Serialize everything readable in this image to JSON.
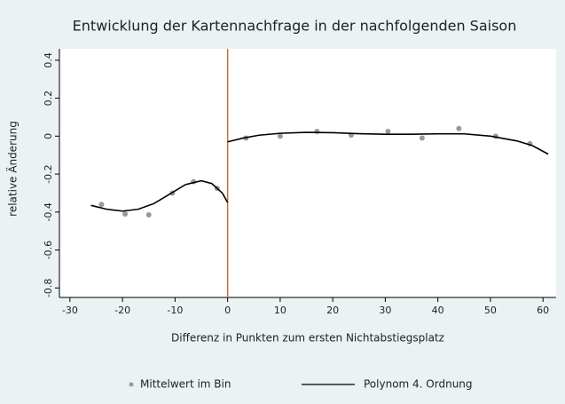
{
  "chart_data": {
    "type": "scatter",
    "title": "Entwicklung der Kartennachfrage in der nachfolgenden Saison",
    "x_label": "Differenz in Punkten zum ersten Nichtabstiegsplatz",
    "y_label": "relative Änderung",
    "xlim": [
      -32,
      62.5
    ],
    "ylim": [
      -0.85,
      0.46
    ],
    "xticks": [
      -30,
      -20,
      -10,
      0,
      10,
      20,
      30,
      40,
      50,
      60
    ],
    "yticks": [
      0.4,
      0.2,
      0,
      -0.2,
      -0.4,
      -0.6,
      -0.8
    ],
    "vline": 0,
    "vline_color": "#c8702a",
    "legend": "bottom",
    "series": [
      {
        "name": "Mittelwert im Bin",
        "type": "scatter",
        "color": "#9a9a9a",
        "x": [
          -24,
          -19.5,
          -15,
          -10.5,
          -6.5,
          -2,
          3.5,
          10,
          17,
          23.5,
          30.5,
          37,
          44,
          51,
          57.5
        ],
        "values": [
          -0.36,
          -0.41,
          -0.415,
          -0.3,
          -0.24,
          -0.275,
          -0.01,
          0.0,
          0.025,
          0.005,
          0.025,
          -0.01,
          0.04,
          0.0,
          -0.04
        ]
      },
      {
        "name": "Polynom 4. Ordnung",
        "type": "line",
        "color": "#000000",
        "x": [
          -26,
          -23,
          -20,
          -17,
          -14,
          -11,
          -8,
          -5,
          -3,
          -1,
          0,
          0,
          0,
          3,
          6,
          10,
          15,
          20,
          25,
          30,
          35,
          40,
          45,
          50,
          55,
          58,
          61
        ],
        "values": [
          -0.365,
          -0.385,
          -0.395,
          -0.385,
          -0.355,
          -0.305,
          -0.255,
          -0.235,
          -0.25,
          -0.3,
          -0.35,
          null,
          -0.03,
          -0.01,
          0.005,
          0.015,
          0.02,
          0.018,
          0.013,
          0.01,
          0.01,
          0.012,
          0.012,
          0.0,
          -0.025,
          -0.05,
          -0.095
        ]
      }
    ]
  }
}
